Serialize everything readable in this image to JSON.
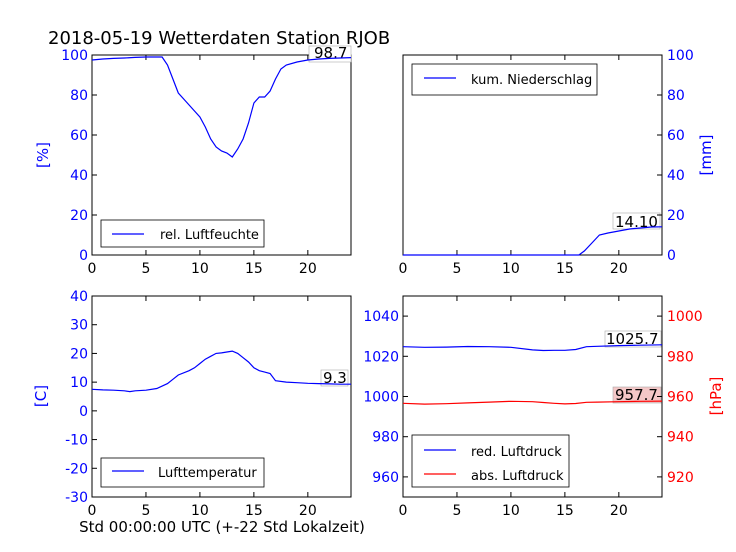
{
  "title": "2018-05-19 Wetterdaten Station RJOB",
  "xlabel": "Std 00:00:00 UTC (+-22 Std Lokalzeit)",
  "colors": {
    "blue": "#0000ff",
    "red": "#ff0000",
    "black": "#000000",
    "annotation_bg": "#f4c7c7"
  },
  "chart_data": [
    {
      "type": "line",
      "ylabel": "[%]",
      "xlim": [
        0,
        24
      ],
      "ylim": [
        0,
        100
      ],
      "x_ticks": [
        0,
        5,
        10,
        15,
        20
      ],
      "y_ticks": [
        0,
        20,
        40,
        60,
        80,
        100
      ],
      "legend": {
        "position": "bottom-left",
        "entries": [
          "rel. Luftfeuchte"
        ]
      },
      "annotation": "98.7",
      "series": [
        {
          "name": "rel. Luftfeuchte",
          "color": "#0000ff",
          "x": [
            0,
            1,
            2,
            3,
            4,
            5,
            6,
            6.5,
            7,
            7.5,
            8,
            8.5,
            9,
            9.5,
            10,
            10.5,
            11,
            11.5,
            12,
            12.5,
            13,
            13.5,
            14,
            14.5,
            15,
            15.5,
            16,
            16.5,
            17,
            17.5,
            18,
            19,
            20,
            21,
            22,
            23,
            24
          ],
          "y": [
            97.5,
            98,
            98.3,
            98.5,
            98.8,
            99,
            99,
            99,
            95,
            88,
            81,
            78,
            75,
            72,
            69,
            64,
            58,
            54,
            52,
            51,
            49,
            53,
            58,
            66,
            76,
            79,
            79,
            82,
            88,
            93,
            95,
            96.5,
            97.5,
            98,
            98.3,
            98.5,
            98.7
          ]
        }
      ]
    },
    {
      "type": "line",
      "ylabel": "[mm]",
      "xlim": [
        0,
        24
      ],
      "ylim": [
        0,
        100
      ],
      "x_ticks": [
        0,
        5,
        10,
        15,
        20
      ],
      "y_ticks": [
        0,
        20,
        40,
        60,
        80,
        100
      ],
      "legend": {
        "position": "top-left",
        "entries": [
          "kum. Niederschlag"
        ]
      },
      "annotation": "14.10",
      "series": [
        {
          "name": "kum. Niederschlag",
          "color": "#0000ff",
          "x": [
            0,
            5,
            10,
            15,
            16.3,
            16.8,
            17.5,
            18.2,
            19,
            20,
            21,
            22,
            23,
            24
          ],
          "y": [
            0,
            0,
            0,
            0,
            0,
            2,
            6,
            10,
            11,
            12,
            13,
            13.5,
            14,
            14.1
          ]
        }
      ]
    },
    {
      "type": "line",
      "ylabel": "[C]",
      "xlim": [
        0,
        24
      ],
      "ylim": [
        -30,
        40
      ],
      "x_ticks": [
        0,
        5,
        10,
        15,
        20
      ],
      "y_ticks": [
        -30,
        -20,
        -10,
        0,
        10,
        20,
        30,
        40
      ],
      "legend": {
        "position": "bottom-left",
        "entries": [
          "Lufttemperatur"
        ]
      },
      "annotation": "9.3",
      "series": [
        {
          "name": "Lufttemperatur",
          "color": "#0000ff",
          "x": [
            0,
            1,
            2,
            3,
            3.5,
            4,
            5,
            6,
            7,
            7.5,
            8,
            9,
            9.5,
            10,
            10.5,
            11,
            11.5,
            12,
            12.5,
            13,
            13.5,
            14,
            14.5,
            15,
            15.5,
            16,
            16.5,
            17,
            18,
            19,
            20,
            21,
            22,
            23,
            24
          ],
          "y": [
            7.5,
            7.3,
            7.2,
            7.0,
            6.7,
            7.0,
            7.2,
            7.8,
            9.5,
            11,
            12.5,
            14,
            15,
            16.5,
            18,
            19,
            20,
            20.2,
            20.5,
            20.8,
            20,
            18.5,
            17,
            15,
            14,
            13.5,
            13,
            10.5,
            10,
            9.8,
            9.6,
            9.5,
            9.4,
            9.3,
            9.3
          ]
        }
      ]
    },
    {
      "type": "line",
      "ylabel": "[hPa]",
      "xlim": [
        0,
        24
      ],
      "ylim_left": [
        950,
        1050
      ],
      "ylim_right": [
        910,
        1010
      ],
      "x_ticks": [
        0,
        5,
        10,
        15,
        20
      ],
      "y_ticks_left": [
        960,
        980,
        1000,
        1020,
        1040
      ],
      "y_ticks_right": [
        920,
        940,
        960,
        980,
        1000
      ],
      "legend": {
        "position": "bottom-left",
        "entries": [
          "red. Luftdruck",
          "abs. Luftdruck"
        ]
      },
      "annotations": [
        "1025.7",
        "957.7"
      ],
      "series": [
        {
          "name": "red. Luftdruck",
          "axis": "left",
          "color": "#0000ff",
          "x": [
            0,
            2,
            4,
            6,
            8,
            10,
            12,
            13,
            14,
            15,
            16,
            17,
            18,
            20,
            22,
            24
          ],
          "y": [
            1024.8,
            1024.5,
            1024.6,
            1024.9,
            1024.8,
            1024.5,
            1023.2,
            1022.9,
            1023,
            1023,
            1023.4,
            1024.8,
            1025,
            1025.3,
            1025.5,
            1025.7
          ]
        },
        {
          "name": "abs. Luftdruck",
          "axis": "right",
          "color": "#ff0000",
          "x": [
            0,
            2,
            4,
            6,
            8,
            10,
            12,
            13,
            14,
            15,
            16,
            17,
            18,
            20,
            22,
            24
          ],
          "y": [
            956.6,
            956.2,
            956.4,
            956.8,
            957.2,
            957.6,
            957.4,
            957,
            956.6,
            956.3,
            956.5,
            957.1,
            957.2,
            957.4,
            957.6,
            957.7
          ]
        }
      ]
    }
  ]
}
